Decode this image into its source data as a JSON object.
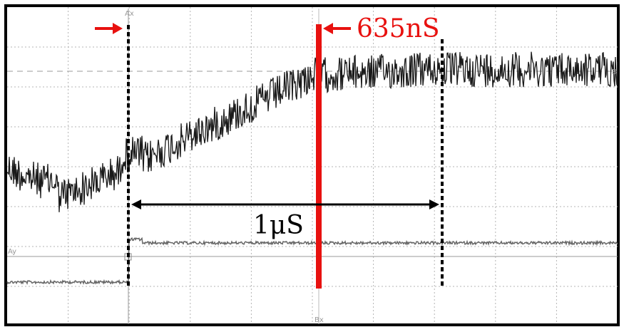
{
  "annotations": {
    "delay_label": "635nS",
    "span_label": "1μS"
  },
  "cursor_labels": {
    "ax": "Ax",
    "bx": "Bx",
    "ay": "Ay",
    "by": "B"
  }
}
